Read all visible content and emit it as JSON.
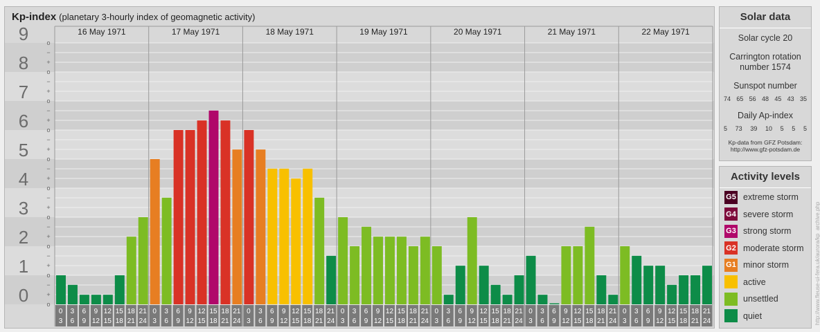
{
  "chart_data": {
    "type": "bar",
    "title": "Kp-index",
    "subtitle": "(planetary 3-hourly index of geomagnetic activity)",
    "days": [
      "16 May 1971",
      "17 May 1971",
      "18 May 1971",
      "19 May 1971",
      "20 May 1971",
      "21 May 1971",
      "22 May 1971"
    ],
    "interval_labels": [
      [
        "0",
        "3"
      ],
      [
        "3",
        "6"
      ],
      [
        "6",
        "9"
      ],
      [
        "9",
        "12"
      ],
      [
        "12",
        "15"
      ],
      [
        "15",
        "18"
      ],
      [
        "18",
        "21"
      ],
      [
        "21",
        "24"
      ]
    ],
    "y_tick_labels": [
      "0",
      "1",
      "2",
      "3",
      "4",
      "5",
      "6",
      "7",
      "8",
      "9"
    ],
    "y_sub_labels": [
      "o",
      "+",
      "−",
      "o"
    ],
    "ylim": [
      0,
      9
    ],
    "values": [
      [
        1.0,
        0.67,
        0.33,
        0.33,
        0.33,
        1.0,
        2.33,
        3.0
      ],
      [
        5.0,
        3.67,
        6.0,
        6.0,
        6.33,
        6.67,
        6.33,
        5.33
      ],
      [
        6.0,
        5.33,
        4.67,
        4.67,
        4.33,
        4.67,
        3.67,
        1.67
      ],
      [
        3.0,
        2.0,
        2.67,
        2.33,
        2.33,
        2.33,
        2.0,
        2.33
      ],
      [
        2.0,
        0.33,
        1.33,
        3.0,
        1.33,
        0.67,
        0.33,
        1.0
      ],
      [
        1.67,
        0.33,
        0.0,
        2.0,
        2.0,
        2.67,
        1.0,
        0.33
      ],
      [
        2.0,
        1.67,
        1.33,
        1.33,
        0.67,
        1.0,
        1.0,
        1.33
      ]
    ],
    "colors": {
      "quiet": "#0d8c48",
      "unsettled": "#7dbc23",
      "active": "#f8c000",
      "G1": "#e77e22",
      "G2": "#d93226",
      "G3": "#b0086a",
      "G4": "#7e0a3b",
      "G5": "#4b0022"
    }
  },
  "solar": {
    "heading": "Solar data",
    "cycle": "Solar cycle 20",
    "rotation_line1": "Carrington rotation",
    "rotation_line2": "number 1574",
    "sunspot_label": "Sunspot number",
    "sunspot_values": [
      "74",
      "65",
      "56",
      "48",
      "45",
      "43",
      "35"
    ],
    "ap_label": "Daily Ap-index",
    "ap_values": [
      "5",
      "73",
      "39",
      "10",
      "5",
      "5",
      "5"
    ],
    "credit_line1": "Kp-data from GFZ Potsdam:",
    "credit_line2": "http://www.gfz-potsdam.de"
  },
  "activity": {
    "heading": "Activity levels",
    "items": [
      {
        "code": "G5",
        "label": "extreme storm",
        "color": "#4b0022"
      },
      {
        "code": "G4",
        "label": "severe storm",
        "color": "#7e0a3b"
      },
      {
        "code": "G3",
        "label": "strong storm",
        "color": "#b0086a"
      },
      {
        "code": "G2",
        "label": "moderate storm",
        "color": "#d93226"
      },
      {
        "code": "G1",
        "label": "minor storm",
        "color": "#e77e22"
      },
      {
        "code": "",
        "label": "active",
        "color": "#f8c000"
      },
      {
        "code": "",
        "label": "unsettled",
        "color": "#7dbc23"
      },
      {
        "code": "",
        "label": "quiet",
        "color": "#0d8c48"
      }
    ]
  },
  "side_url": "http://www.fleuse-ui-fera.uk/aurora/kp_archive.php"
}
